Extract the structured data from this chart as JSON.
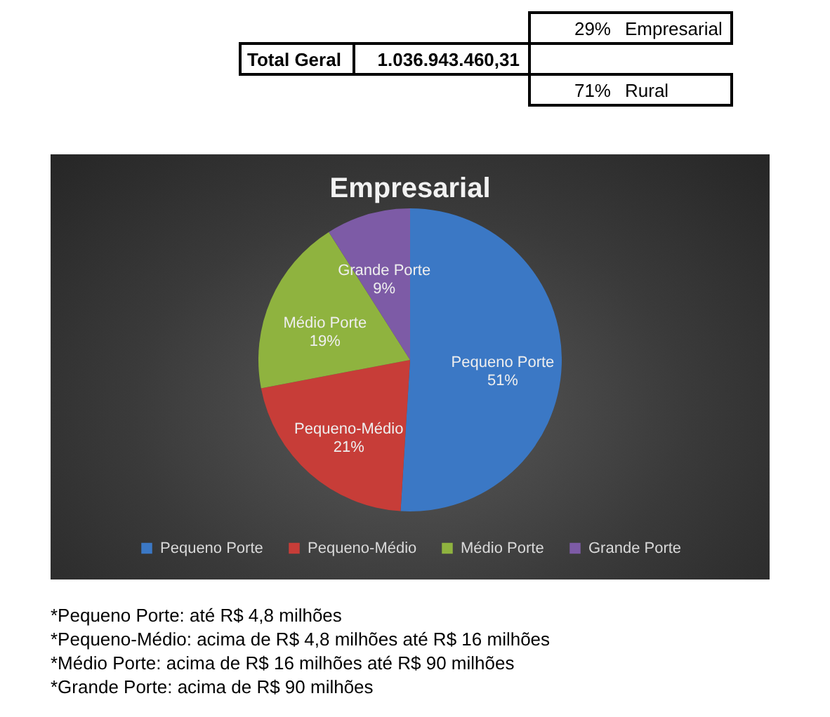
{
  "chart_data": [
    {
      "type": "other",
      "annotations": [
        "29%",
        "Empresarial",
        "Total Geral",
        "1.036.943.460,31",
        "71%",
        "Rural"
      ]
    },
    {
      "type": "pie",
      "title": "Empresarial",
      "categories": [
        "Pequeno Porte",
        "Pequeno-Médio",
        "Médio Porte",
        "Grande Porte"
      ],
      "values": [
        51,
        21,
        19,
        9
      ],
      "colors": [
        "#3b78c5",
        "#c73d38",
        "#8fb33f",
        "#7d5ba6"
      ],
      "value_labels": [
        "51%",
        "21%",
        "19%",
        "9%"
      ],
      "legend": "bottom",
      "annotations": [
        "*Pequeno Porte: até R$ 4,8 milhões",
        "*Pequeno-Médio: acima de R$ 4,8 milhões até R$ 16 milhões",
        "*Médio Porte: acima de R$ 16 milhões até R$ 90 milhões",
        "*Grande Porte: acima de R$ 90 milhões"
      ]
    }
  ]
}
